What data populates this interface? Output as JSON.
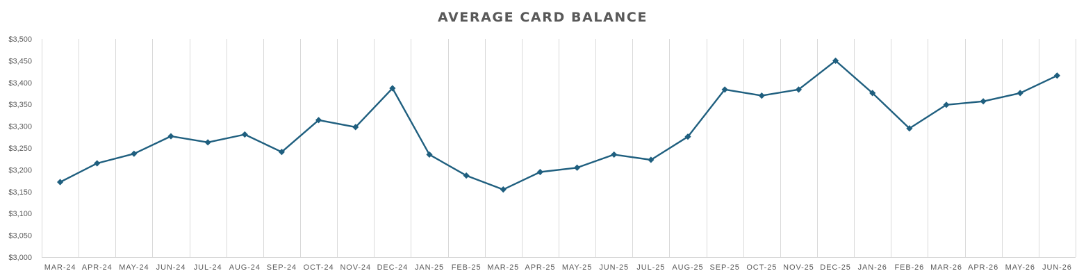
{
  "chart_data": {
    "type": "line",
    "title": "AVERAGE CARD BALANCE",
    "xlabel": "",
    "ylabel": "",
    "categories": [
      "MAR-24",
      "APR-24",
      "MAY-24",
      "JUN-24",
      "JUL-24",
      "AUG-24",
      "SEP-24",
      "OCT-24",
      "NOV-24",
      "DEC-24",
      "JAN-25",
      "FEB-25",
      "MAR-25",
      "APR-25",
      "MAY-25",
      "JUN-25",
      "JUL-25",
      "AUG-25",
      "SEP-25",
      "OCT-25",
      "NOV-25",
      "DEC-25",
      "JAN-26",
      "FEB-26",
      "MAR-26",
      "APR-26",
      "MAY-26",
      "JUN-26"
    ],
    "series": [
      {
        "values": [
          3172,
          3215,
          3237,
          3277,
          3263,
          3281,
          3241,
          3314,
          3298,
          3387,
          3235,
          3187,
          3155,
          3195,
          3205,
          3235,
          3223,
          3276,
          3384,
          3370,
          3384,
          3450,
          3376,
          3295,
          3349,
          3357,
          3376,
          3416
        ],
        "color": "#1f5f7f"
      }
    ],
    "ylim": [
      3000,
      3500
    ],
    "yticks": [
      "$3,000",
      "$3,050",
      "$3,100",
      "$3,150",
      "$3,200",
      "$3,250",
      "$3,300",
      "$3,350",
      "$3,400",
      "$3,450",
      "$3,500"
    ],
    "ytick_values": [
      3000,
      3050,
      3100,
      3150,
      3200,
      3250,
      3300,
      3350,
      3400,
      3450,
      3500
    ],
    "grid": "vertical",
    "legend": "none",
    "marker": "diamond"
  }
}
